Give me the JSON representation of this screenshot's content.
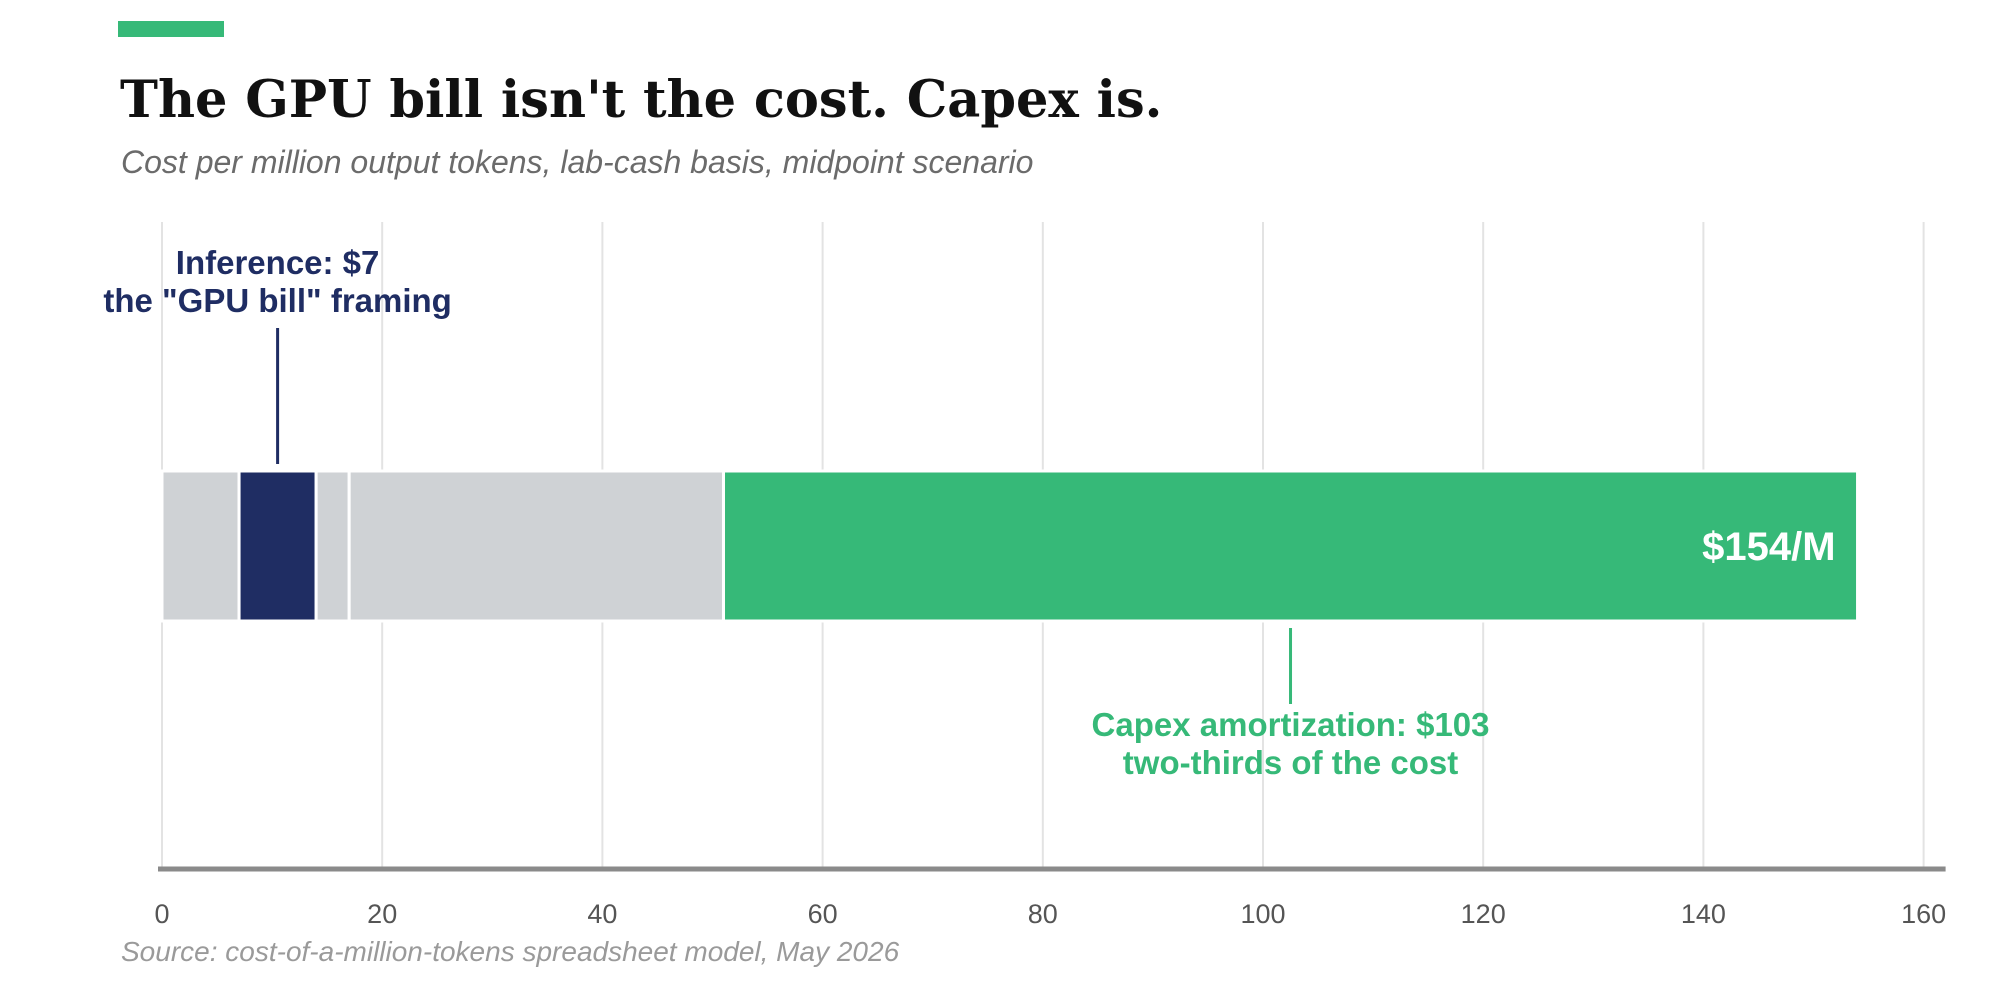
{
  "title": "The GPU bill isn't the cost. Capex is.",
  "subtitle": "Cost per million output tokens, lab-cash basis, midpoint scenario",
  "source": "Source: cost-of-a-million-tokens spreadsheet model, May 2026",
  "colors": {
    "accent": "#36b978",
    "navy": "#1f2d63",
    "gray_segment": "#cfd2d5",
    "gridline": "#e3e3e3",
    "axis": "#8a8a8a",
    "tick_text": "#555555"
  },
  "chart_data": {
    "type": "bar",
    "orientation": "horizontal-stacked",
    "segments": [
      {
        "start": 0,
        "end": 7,
        "color": "#cfd2d5"
      },
      {
        "start": 7,
        "end": 14,
        "color": "#1f2d63"
      },
      {
        "start": 14,
        "end": 17,
        "color": "#cfd2d5"
      },
      {
        "start": 17,
        "end": 51,
        "color": "#cfd2d5"
      },
      {
        "start": 51,
        "end": 154,
        "color": "#36b978"
      }
    ],
    "total_label": "$154/M",
    "xlim": [
      0,
      160
    ],
    "ticks": [
      0,
      20,
      40,
      60,
      80,
      100,
      120,
      140,
      160
    ],
    "grid": true,
    "annotations": [
      {
        "lines": [
          "Inference: $7",
          "the \"GPU bill\" framing"
        ],
        "x": 10.5,
        "position": "above",
        "color": "#1f2d63"
      },
      {
        "lines": [
          "Capex amortization: $103",
          "two-thirds of the cost"
        ],
        "x": 102.5,
        "position": "below",
        "color": "#36b978"
      }
    ]
  }
}
